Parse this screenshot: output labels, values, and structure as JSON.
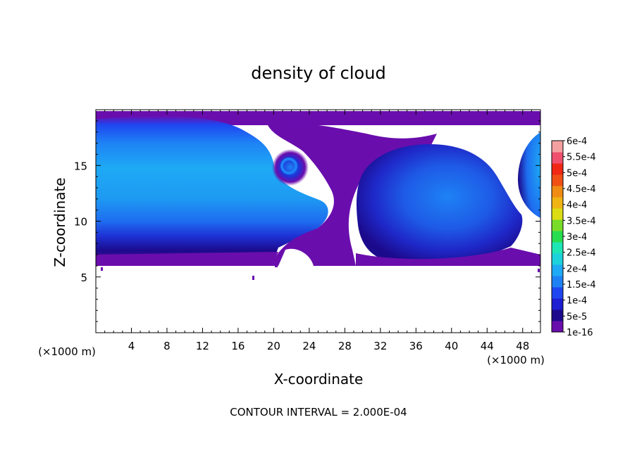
{
  "chart_data": {
    "type": "heatmap",
    "title": "density of cloud",
    "xlabel": "X-coordinate",
    "ylabel": "Z-coordinate",
    "x_unit": "(×1000 m)",
    "y_unit": "(×1000 m)",
    "xlim": [
      0,
      50
    ],
    "ylim": [
      0,
      20
    ],
    "x_ticks": [
      4,
      8,
      12,
      16,
      20,
      24,
      28,
      32,
      36,
      40,
      44,
      48
    ],
    "y_ticks": [
      5,
      10,
      15
    ],
    "footer": "CONTOUR INTERVAL = 2.000E-04",
    "colorbar": {
      "labels": [
        "6e-4",
        "5.5e-4",
        "5e-4",
        "4.5e-4",
        "4e-4",
        "3.5e-4",
        "3e-4",
        "2.5e-4",
        "2e-4",
        "1.5e-4",
        "1e-4",
        "5e-5",
        "1e-16"
      ],
      "colors": [
        "#6a0dad",
        "#1c0a8c",
        "#1e1ed2",
        "#1e46f0",
        "#1e82f5",
        "#1eaaf5",
        "#1ed2dc",
        "#1ee6b4",
        "#28dc50",
        "#78dc28",
        "#dcdc14",
        "#f0b414",
        "#f08c14",
        "#f05014",
        "#f02814",
        "#f0506e",
        "#f5a0a0"
      ]
    },
    "regions": [
      {
        "name": "cloud-layer-left",
        "x_range": [
          0,
          20
        ],
        "z_range": [
          6.2,
          19.5
        ]
      },
      {
        "name": "cloud-layer-right",
        "x_range": [
          26,
          50
        ],
        "z_range": [
          6.2,
          19.5
        ]
      },
      {
        "name": "vortex",
        "x_center": 21.5,
        "z_center": 14.5
      }
    ]
  }
}
